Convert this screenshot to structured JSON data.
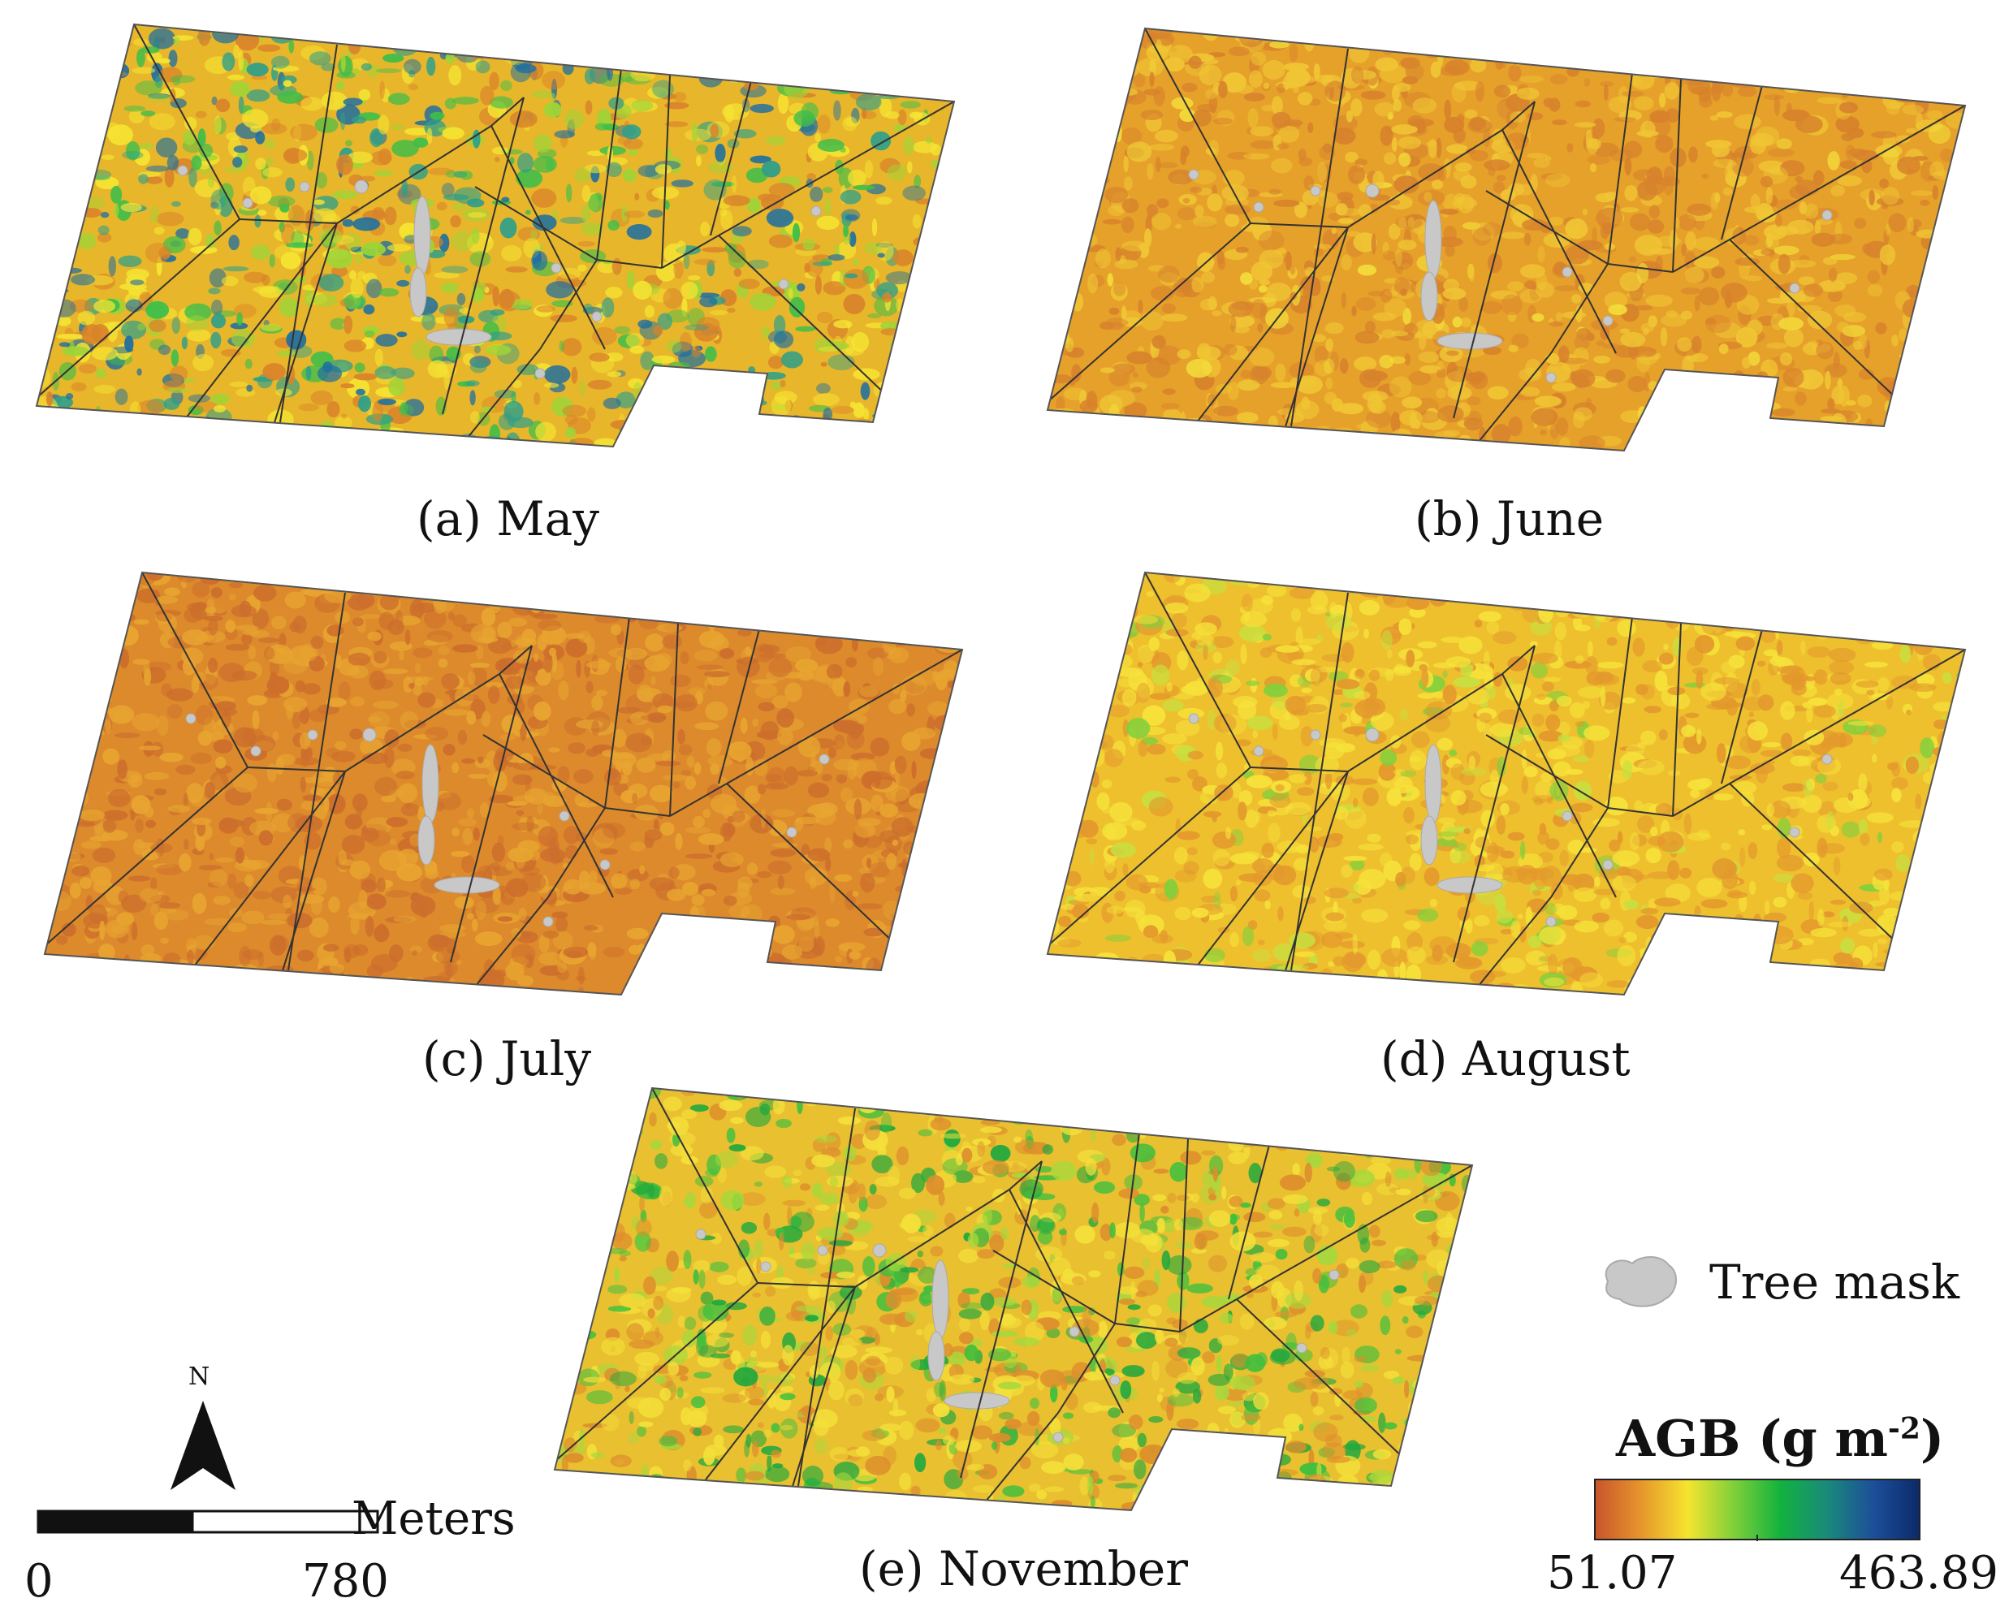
{
  "panels": [
    {
      "caption": "(a) May",
      "base": "#e8b62a",
      "mottle": [
        "#d9832a",
        "#f5e432",
        "#9fd437",
        "#3fbe4a",
        "#2e9f8a",
        "#1f6fa0"
      ],
      "green_level": 0.55
    },
    {
      "caption": "(b) June",
      "base": "#e6a12a",
      "mottle": [
        "#d7822c",
        "#f0c634",
        "#f2dc3a"
      ],
      "green_level": 0.05
    },
    {
      "caption": "(c) July",
      "base": "#dc8a2c",
      "mottle": [
        "#cc6e2c",
        "#e8a530",
        "#f0c23a"
      ],
      "green_level": 0.0
    },
    {
      "caption": "(d) August",
      "base": "#eec02e",
      "mottle": [
        "#e3982c",
        "#f6e23a",
        "#c6e040",
        "#7fd03c"
      ],
      "green_level": 0.15
    },
    {
      "caption": "(e) November",
      "base": "#e9c030",
      "mottle": [
        "#dd8e2c",
        "#f4e03a",
        "#a6d83c",
        "#3fbf3e",
        "#21a83e"
      ],
      "green_level": 0.45
    }
  ],
  "legend": {
    "tree_mask_label": "Tree mask",
    "tree_mask_color": "#c8c8c8",
    "colorbar_title": "AGB (g m",
    "colorbar_sup": "-2",
    "colorbar_close": ")",
    "min_label": "51.07",
    "max_label": "463.89",
    "colors": [
      "#c8542c",
      "#e6962c",
      "#f6e42f",
      "#7fd03a",
      "#12b23e",
      "#1a8a7a",
      "#1c4f9a",
      "#0b2a6a"
    ]
  },
  "scale_bar": {
    "unit_label": "Meters",
    "start_label": "0",
    "end_label": "780"
  },
  "north_arrow": {
    "label": "N"
  }
}
